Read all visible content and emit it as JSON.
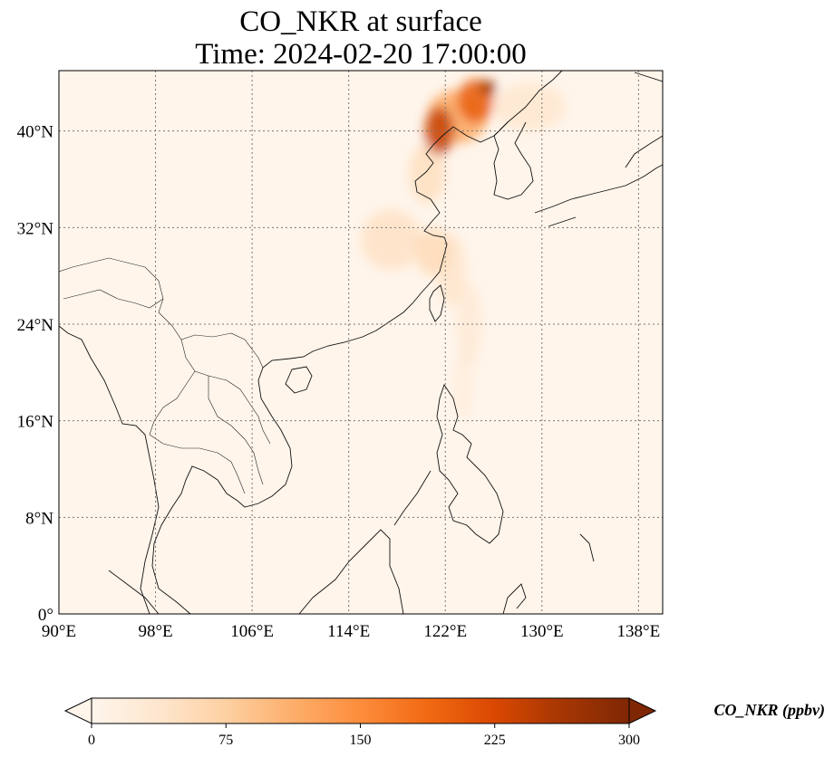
{
  "title_line1": "CO_NKR at surface",
  "title_line2": "Time: 2024-02-20 17:00:00",
  "map": {
    "lon_range": [
      90,
      140
    ],
    "lat_range": [
      0,
      45
    ],
    "lon_ticks": [
      {
        "value": 90,
        "label": "90°E"
      },
      {
        "value": 98,
        "label": "98°E"
      },
      {
        "value": 106,
        "label": "106°E"
      },
      {
        "value": 114,
        "label": "114°E"
      },
      {
        "value": 122,
        "label": "122°E"
      },
      {
        "value": 130,
        "label": "130°E"
      },
      {
        "value": 138,
        "label": "138°E"
      }
    ],
    "lat_ticks": [
      {
        "value": 0,
        "label": "0°"
      },
      {
        "value": 8,
        "label": "8°N"
      },
      {
        "value": 16,
        "label": "16°N"
      },
      {
        "value": 24,
        "label": "24°N"
      },
      {
        "value": 32,
        "label": "32°N"
      },
      {
        "value": 40,
        "label": "40°N"
      }
    ],
    "gridlines": true,
    "background_color": "#fff5eb"
  },
  "colorbar": {
    "label": "CO_NKR (ppbv)",
    "min": 0,
    "max": 300,
    "ticks": [
      {
        "value": 0,
        "label": "0"
      },
      {
        "value": 75,
        "label": "75"
      },
      {
        "value": 150,
        "label": "150"
      },
      {
        "value": 225,
        "label": "225"
      },
      {
        "value": 300,
        "label": "300"
      }
    ],
    "colormap": [
      "#fff5eb",
      "#fee6ce",
      "#fdd0a2",
      "#fdae6b",
      "#fd8d3c",
      "#f16913",
      "#d94801",
      "#a63603",
      "#7f2704"
    ],
    "extend": "both"
  },
  "plumes": [
    {
      "lon": 121.5,
      "lat": 40.0,
      "lon_radius": 1.2,
      "lat_radius": 2.0,
      "value": 240
    },
    {
      "lon": 124.5,
      "lat": 42.5,
      "lon_radius": 1.5,
      "lat_radius": 1.8,
      "value": 200
    },
    {
      "lon": 125.5,
      "lat": 43.6,
      "lon_radius": 0.7,
      "lat_radius": 0.6,
      "value": 280
    },
    {
      "lon": 123.0,
      "lat": 41.2,
      "lon_radius": 2.5,
      "lat_radius": 2.2,
      "value": 120
    },
    {
      "lon": 120.5,
      "lat": 36.5,
      "lon_radius": 1.5,
      "lat_radius": 2.5,
      "value": 50
    },
    {
      "lon": 117.5,
      "lat": 31.0,
      "lon_radius": 2.5,
      "lat_radius": 2.5,
      "value": 45
    },
    {
      "lon": 121.0,
      "lat": 30.0,
      "lon_radius": 1.5,
      "lat_radius": 2.0,
      "value": 55
    },
    {
      "lon": 122.5,
      "lat": 28.5,
      "lon_radius": 1.2,
      "lat_radius": 3.0,
      "value": 40
    },
    {
      "lon": 124.0,
      "lat": 24.0,
      "lon_radius": 1.0,
      "lat_radius": 3.5,
      "value": 28
    },
    {
      "lon": 123.5,
      "lat": 19.0,
      "lon_radius": 0.8,
      "lat_radius": 3.0,
      "value": 20
    },
    {
      "lon": 129.0,
      "lat": 42.0,
      "lon_radius": 3.0,
      "lat_radius": 2.0,
      "value": 35
    }
  ]
}
